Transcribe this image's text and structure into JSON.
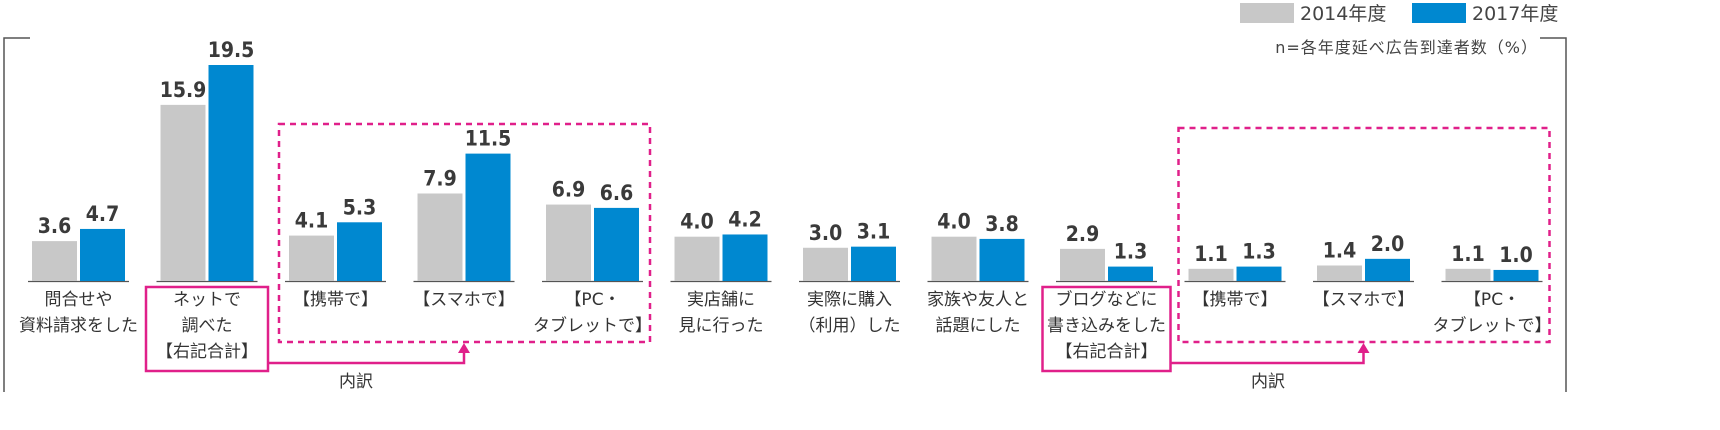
{
  "colors": {
    "series_2014": "#c8c8c8",
    "series_2017": "#0088d0",
    "highlight": "#e0208a",
    "axis": "#555555"
  },
  "legend": [
    {
      "label": "2014年度"
    },
    {
      "label": "2017年度"
    }
  ],
  "note": "n=各年度延べ広告到達者数（%）",
  "breakdown_label": "内訳",
  "chart_data": {
    "type": "bar",
    "note": "n=各年度延べ広告到達者数（%）",
    "categories": [
      [
        "問合せや",
        "資料請求をした"
      ],
      [
        "ネットで",
        "調べた",
        "【右記合計】"
      ],
      [
        "【携帯で】"
      ],
      [
        "【スマホで】"
      ],
      [
        "【PC・",
        "タブレットで】"
      ],
      [
        "実店舗に",
        "見に行った"
      ],
      [
        "実際に購入",
        "（利用）した"
      ],
      [
        "家族や友人と",
        "話題にした"
      ],
      [
        "ブログなどに",
        "書き込みをした",
        "【右記合計】"
      ],
      [
        "【携帯で】"
      ],
      [
        "【スマホで】"
      ],
      [
        "【PC・",
        "タブレットで】"
      ]
    ],
    "series": [
      {
        "name": "2014年度",
        "values": [
          3.6,
          15.9,
          4.1,
          7.9,
          6.9,
          4.0,
          3.0,
          4.0,
          2.9,
          1.1,
          1.4,
          1.1
        ]
      },
      {
        "name": "2017年度",
        "values": [
          4.7,
          19.5,
          5.3,
          11.5,
          6.6,
          4.2,
          3.1,
          3.8,
          1.3,
          1.3,
          2.0,
          1.0
        ]
      }
    ],
    "value_labels": [
      [
        "3.6",
        "15.9",
        "4.1",
        "7.9",
        "6.9",
        "4.0",
        "3.0",
        "4.0",
        "2.9",
        "1.1",
        "1.4",
        "1.1"
      ],
      [
        "4.7",
        "19.5",
        "5.3",
        "11.5",
        "6.6",
        "4.2",
        "3.1",
        "3.8",
        "1.3",
        "1.3",
        "2.0",
        "1.0"
      ]
    ],
    "ylim": [
      0,
      19.5
    ],
    "grid": false,
    "legend_position": "top-right",
    "groups": [
      {
        "total_index": 1,
        "breakdown_indices": [
          2,
          3,
          4
        ],
        "label": "内訳"
      },
      {
        "total_index": 8,
        "breakdown_indices": [
          9,
          10,
          11
        ],
        "label": "内訳"
      }
    ]
  }
}
